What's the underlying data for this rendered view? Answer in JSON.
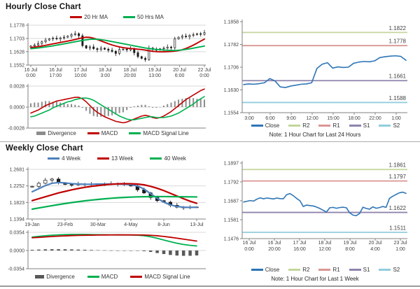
{
  "chart_data": [
    {
      "id": "hourly_price",
      "type": "candlestick",
      "title": "Hourly Close Chart",
      "ylim": [
        1.1552,
        1.1778
      ],
      "yticks": [
        {
          "label": "1.1778",
          "value": 1.1778
        },
        {
          "label": "1.1703",
          "value": 1.1703
        },
        {
          "label": "1.1628",
          "value": 1.1628
        },
        {
          "label": "1.1552",
          "value": 1.1552
        }
      ],
      "xticks": [
        [
          "16 Jul",
          "0:00"
        ],
        [
          "16 Jul",
          "17:00"
        ],
        [
          "17 Jul",
          "10:00"
        ],
        [
          "18 Jul",
          "3:00"
        ],
        [
          "18 Jul",
          "20:00"
        ],
        [
          "19 Jul",
          "13:00"
        ],
        [
          "20 Jul",
          "6:00"
        ],
        [
          "22 Jul",
          "0:00"
        ]
      ],
      "grid": true,
      "series": [
        {
          "name": "Close",
          "type": "candle",
          "color": "#1A1A1A",
          "values": [
            1.166,
            1.1666,
            1.1674,
            1.1684,
            1.1694,
            1.17,
            1.1704,
            1.17,
            1.1706,
            1.171,
            1.1716,
            1.1724,
            1.173,
            1.1718,
            1.1662,
            1.1648,
            1.1655,
            1.1645,
            1.164,
            1.1648,
            1.1642,
            1.1636,
            1.163,
            1.1618,
            1.164,
            1.1642,
            1.1638,
            1.1644,
            1.1622,
            1.16,
            1.159,
            1.1583,
            1.1648,
            1.164,
            1.1638,
            1.1644,
            1.1648,
            1.1654,
            1.165,
            1.17,
            1.171,
            1.1716,
            1.1712,
            1.172,
            1.1724,
            1.173,
            1.1726,
            1.1736
          ]
        },
        {
          "name": "20 Hr MA",
          "type": "line",
          "color": "#C00000",
          "width": 1.9,
          "values": [
            1.1652,
            1.1654,
            1.1657,
            1.166,
            1.1664,
            1.1668,
            1.1672,
            1.1676,
            1.168,
            1.1684,
            1.1688,
            1.1692,
            1.1697,
            1.1702,
            1.1707,
            1.171,
            1.1709,
            1.1704,
            1.1697,
            1.1689,
            1.1681,
            1.1673,
            1.1666,
            1.166,
            1.1655,
            1.1651,
            1.1648,
            1.1646,
            1.1644,
            1.1642,
            1.164,
            1.1637,
            1.1633,
            1.163,
            1.1628,
            1.1627,
            1.1627,
            1.1628,
            1.1629,
            1.1631,
            1.1634,
            1.1639,
            1.1646,
            1.1655,
            1.1665,
            1.1676,
            1.1688,
            1.1699
          ]
        },
        {
          "name": "50 Hrs MA",
          "type": "line",
          "color": "#00B050",
          "width": 1.9,
          "values": [
            1.1645,
            1.1647,
            1.1649,
            1.1652,
            1.1655,
            1.1658,
            1.1661,
            1.1665,
            1.1668,
            1.1672,
            1.1676,
            1.168,
            1.1684,
            1.1688,
            1.1692,
            1.1695,
            1.1698,
            1.1699,
            1.1698,
            1.1696,
            1.1693,
            1.1689,
            1.1685,
            1.1681,
            1.1677,
            1.1673,
            1.1669,
            1.1665,
            1.1661,
            1.1657,
            1.1653,
            1.1649,
            1.1646,
            1.1643,
            1.1641,
            1.1639,
            1.1637,
            1.1636,
            1.1635,
            1.1635,
            1.1636,
            1.1638,
            1.1641,
            1.1644,
            1.1648,
            1.1652,
            1.1656,
            1.166
          ]
        }
      ]
    },
    {
      "id": "hourly_macd",
      "type": "bar+line",
      "ylim": [
        -0.0028,
        0.0028
      ],
      "yticks": [
        {
          "label": "0.0028",
          "value": 0.0028
        },
        {
          "label": "0.0000",
          "value": 0.0
        },
        {
          "label": "-0.0028",
          "value": -0.0028
        }
      ],
      "grid": true,
      "series": [
        {
          "name": "Divergence",
          "type": "bar",
          "color": "#8C8C8C",
          "values": [
            0.0005,
            0.0006,
            0.0006,
            0.0007,
            0.0008,
            0.0008,
            0.0007,
            0.0007,
            0.0006,
            0.0005,
            0.0004,
            0.0004,
            0.0003,
            0.0002,
            -0.0001,
            -0.0005,
            -0.0009,
            -0.0012,
            -0.0013,
            -0.0013,
            -0.0013,
            -0.0012,
            -0.0011,
            -0.001,
            -0.0008,
            -0.0007,
            -0.0004,
            -0.0001,
            0.0001,
            0.0002,
            0.0003,
            0.0003,
            0.0001,
            -0.0001,
            -0.0001,
            0.0,
            0.0002,
            0.0004,
            0.0006,
            0.0008,
            0.001,
            0.0011,
            0.0012,
            0.0012,
            0.0012,
            0.0011,
            0.0011,
            0.001
          ]
        },
        {
          "name": "MACD",
          "type": "line",
          "color": "#C00000",
          "width": 1.6,
          "values": [
            -0.0008,
            -0.0006,
            -0.0004,
            -0.0001,
            0.0002,
            0.0004,
            0.0006,
            0.0008,
            0.0009,
            0.001,
            0.0011,
            0.0012,
            0.0013,
            0.0013,
            0.0011,
            0.0007,
            0.0002,
            -0.0003,
            -0.0007,
            -0.001,
            -0.0013,
            -0.0015,
            -0.0017,
            -0.0019,
            -0.002,
            -0.0021,
            -0.002,
            -0.0018,
            -0.0016,
            -0.0014,
            -0.0012,
            -0.0011,
            -0.0012,
            -0.0014,
            -0.0015,
            -0.0014,
            -0.0012,
            -0.0009,
            -0.0006,
            -0.0002,
            0.0002,
            0.0006,
            0.001,
            0.0013,
            0.0016,
            0.0019,
            0.0022,
            0.0024
          ]
        },
        {
          "name": "MACD Signal Line",
          "type": "line",
          "color": "#00B050",
          "width": 1.6,
          "values": [
            -0.0013,
            -0.0012,
            -0.001,
            -0.0008,
            -0.0006,
            -0.0004,
            -0.0001,
            0.0001,
            0.0003,
            0.0005,
            0.0007,
            0.0008,
            0.001,
            0.0011,
            0.0012,
            0.0012,
            0.0011,
            0.0009,
            0.0006,
            0.0003,
            0.0,
            -0.0003,
            -0.0006,
            -0.0009,
            -0.0012,
            -0.0014,
            -0.0016,
            -0.0017,
            -0.0017,
            -0.0016,
            -0.0015,
            -0.0014,
            -0.0013,
            -0.0013,
            -0.0014,
            -0.0014,
            -0.0014,
            -0.0013,
            -0.0012,
            -0.001,
            -0.0008,
            -0.0005,
            -0.0002,
            0.0001,
            0.0004,
            0.0008,
            0.0011,
            0.0014
          ]
        }
      ]
    },
    {
      "id": "hourly_support_resistance",
      "type": "line",
      "ylim": [
        1.1554,
        1.1858
      ],
      "yticks": [
        {
          "label": "1.1858",
          "value": 1.1858
        },
        {
          "label": "1.1782",
          "value": 1.1782
        },
        {
          "label": "1.1706",
          "value": 1.1706
        },
        {
          "label": "1.1630",
          "value": 1.163
        },
        {
          "label": "1.1554",
          "value": 1.1554
        }
      ],
      "xticks": [
        "3:00",
        "6:00",
        "9:00",
        "12:00",
        "15:00",
        "18:00",
        "22:00",
        "1:00"
      ],
      "levels": [
        {
          "name": "R2",
          "label": "1.1822",
          "value": 1.1822,
          "color": "#C3D69B"
        },
        {
          "name": "R1",
          "label": "1.1778",
          "value": 1.1778,
          "color": "#D99694"
        },
        {
          "name": "S1",
          "label": "1.1661",
          "value": 1.1661,
          "color": "#8F84AD"
        },
        {
          "name": "S2",
          "label": "1.1588",
          "value": 1.1588,
          "color": "#92CDDC"
        }
      ],
      "note": "Note: 1 Hour Chart for Last 24 Hours",
      "series": [
        {
          "name": "Close",
          "type": "line",
          "color": "#2E75B6",
          "width": 1.6,
          "values": [
            1.1648,
            1.165,
            1.1649,
            1.1651,
            1.1654,
            1.1668,
            1.166,
            1.164,
            1.1638,
            1.1643,
            1.1646,
            1.1649,
            1.165,
            1.1654,
            1.1702,
            1.1716,
            1.1721,
            1.1703,
            1.1707,
            1.1705,
            1.1706,
            1.1719,
            1.1723,
            1.1725,
            1.1724,
            1.1727,
            1.1738,
            1.1741,
            1.1743,
            1.1744,
            1.1742,
            1.1729
          ]
        }
      ]
    },
    {
      "id": "weekly_price",
      "type": "candlestick",
      "title": "Weekly Close Chart",
      "ylim": [
        1.1394,
        1.2681
      ],
      "yticks": [
        {
          "label": "1.2681",
          "value": 1.2681
        },
        {
          "label": "1.2252",
          "value": 1.2252
        },
        {
          "label": "1.1823",
          "value": 1.1823
        },
        {
          "label": "1.1394",
          "value": 1.1394
        }
      ],
      "xticks": [
        "19-Jan",
        "23-Feb",
        "30-Mar",
        "4-May",
        "8-Jun",
        "13-Jul"
      ],
      "grid": true,
      "series": [
        {
          "name": "Close",
          "type": "candle",
          "color": "#1A1A1A",
          "values": [
            1.224,
            1.232,
            1.24,
            1.243,
            1.233,
            1.229,
            1.228,
            1.23,
            1.23,
            1.229,
            1.23,
            1.23,
            1.231,
            1.23,
            1.229,
            1.225,
            1.215,
            1.207,
            1.195,
            1.187,
            1.183,
            1.175,
            1.17,
            1.169,
            1.17,
            1.1705
          ]
        },
        {
          "name": "4 Week",
          "type": "line",
          "color": "#4F81BD",
          "width": 2.2,
          "values": [
            1.21,
            1.218,
            1.226,
            1.232,
            1.234,
            1.233,
            1.231,
            1.23,
            1.2295,
            1.2295,
            1.23,
            1.23,
            1.23,
            1.23,
            1.2295,
            1.2285,
            1.225,
            1.217,
            1.205,
            1.193,
            1.183,
            1.176,
            1.172,
            1.17,
            1.1695,
            1.17
          ]
        },
        {
          "name": "13 Week",
          "type": "line",
          "color": "#C00000",
          "width": 2.2,
          "values": [
            1.187,
            1.192,
            1.197,
            1.202,
            1.207,
            1.211,
            1.215,
            1.2185,
            1.2215,
            1.224,
            1.226,
            1.228,
            1.2295,
            1.2305,
            1.231,
            1.2308,
            1.23,
            1.228,
            1.224,
            1.219,
            1.213,
            1.206,
            1.199,
            1.192,
            1.1855,
            1.18
          ]
        },
        {
          "name": "40 Week",
          "type": "line",
          "color": "#00B050",
          "width": 2.2,
          "values": [
            1.165,
            1.168,
            1.171,
            1.174,
            1.1768,
            1.1795,
            1.182,
            1.1843,
            1.1865,
            1.1885,
            1.1902,
            1.1918,
            1.1932,
            1.1944,
            1.1954,
            1.1962,
            1.1968,
            1.1972,
            1.1974,
            1.1975,
            1.1975,
            1.1974,
            1.1972,
            1.197,
            1.1968,
            1.1966
          ]
        }
      ]
    },
    {
      "id": "weekly_macd",
      "type": "bar+line",
      "ylim": [
        -0.0354,
        0.0354
      ],
      "yticks": [
        {
          "label": "0.0354",
          "value": 0.0354
        },
        {
          "label": "0.0000",
          "value": 0.0
        },
        {
          "label": "-0.0354",
          "value": -0.0354
        }
      ],
      "grid": true,
      "series": [
        {
          "name": "Divergence",
          "type": "bar",
          "color": "#595959",
          "values": [
            0.0014,
            0.0019,
            0.0024,
            0.0026,
            0.0026,
            0.0025,
            0.0022,
            0.0019,
            0.0015,
            0.0011,
            0.0007,
            0.0004,
            0.0002,
            0.0,
            -0.0001,
            -0.0003,
            -0.0005,
            -0.0013,
            -0.0028,
            -0.0049,
            -0.0069,
            -0.0086,
            -0.0098,
            -0.0103,
            -0.0102,
            -0.0096
          ]
        },
        {
          "name": "MACD",
          "type": "line",
          "color": "#00B050",
          "width": 1.8,
          "values": [
            0.0262,
            0.0275,
            0.0288,
            0.0298,
            0.0305,
            0.031,
            0.0312,
            0.0313,
            0.0312,
            0.031,
            0.0308,
            0.0306,
            0.0305,
            0.0304,
            0.0303,
            0.0301,
            0.0298,
            0.0288,
            0.0268,
            0.0238,
            0.0205,
            0.0172,
            0.0142,
            0.0118,
            0.01,
            0.0088
          ]
        },
        {
          "name": "MACD Signal Line",
          "type": "line",
          "color": "#C00000",
          "width": 1.8,
          "values": [
            0.0248,
            0.0256,
            0.0264,
            0.0272,
            0.0279,
            0.0285,
            0.029,
            0.0294,
            0.0297,
            0.0299,
            0.0301,
            0.0302,
            0.0303,
            0.0304,
            0.0304,
            0.0304,
            0.0303,
            0.0301,
            0.0296,
            0.0287,
            0.0274,
            0.0258,
            0.024,
            0.0221,
            0.0202,
            0.0184
          ]
        }
      ]
    },
    {
      "id": "weekly_support_resistance",
      "type": "line",
      "ylim": [
        1.1476,
        1.1897
      ],
      "yticks": [
        {
          "label": "1.1897",
          "value": 1.1897
        },
        {
          "label": "1.1792",
          "value": 1.1792
        },
        {
          "label": "1.1687",
          "value": 1.1687
        },
        {
          "label": "1.1581",
          "value": 1.1581
        },
        {
          "label": "1.1476",
          "value": 1.1476
        }
      ],
      "xticks": [
        [
          "16 Jul",
          "0:00"
        ],
        [
          "16 Jul",
          "20:00"
        ],
        [
          "17 Jul",
          "16:00"
        ],
        [
          "18 Jul",
          "12:00"
        ],
        [
          "19 Jul",
          "8:00"
        ],
        [
          "20 Jul",
          "4:00"
        ],
        [
          "23 Jul",
          "1:00"
        ]
      ],
      "levels": [
        {
          "name": "R2",
          "label": "1.1861",
          "value": 1.1861,
          "color": "#C3D69B"
        },
        {
          "name": "R1",
          "label": "1.1797",
          "value": 1.1797,
          "color": "#D99694"
        },
        {
          "name": "S1",
          "label": "1.1622",
          "value": 1.1622,
          "color": "#8F84AD"
        },
        {
          "name": "S2",
          "label": "1.1511",
          "value": 1.1511,
          "color": "#92CDDC"
        }
      ],
      "note": "Note: 1 Hour Chart for Last 1 Week",
      "series": [
        {
          "name": "Close",
          "type": "line",
          "color": "#2E75B6",
          "width": 1.6,
          "values": [
            1.168,
            1.1684,
            1.1688,
            1.1685,
            1.1696,
            1.1703,
            1.1698,
            1.1702,
            1.17,
            1.1697,
            1.1702,
            1.1699,
            1.1698,
            1.1721,
            1.1727,
            1.1715,
            1.17,
            1.1687,
            1.1655,
            1.1663,
            1.166,
            1.1658,
            1.1652,
            1.1644,
            1.1634,
            1.1624,
            1.1648,
            1.165,
            1.1645,
            1.1649,
            1.1651,
            1.1648,
            1.162,
            1.1607,
            1.1604,
            1.1616,
            1.1651,
            1.1644,
            1.164,
            1.1653,
            1.1645,
            1.1649,
            1.1655,
            1.165,
            1.17,
            1.1712,
            1.1722,
            1.1731,
            1.1735,
            1.1728
          ]
        }
      ]
    }
  ]
}
